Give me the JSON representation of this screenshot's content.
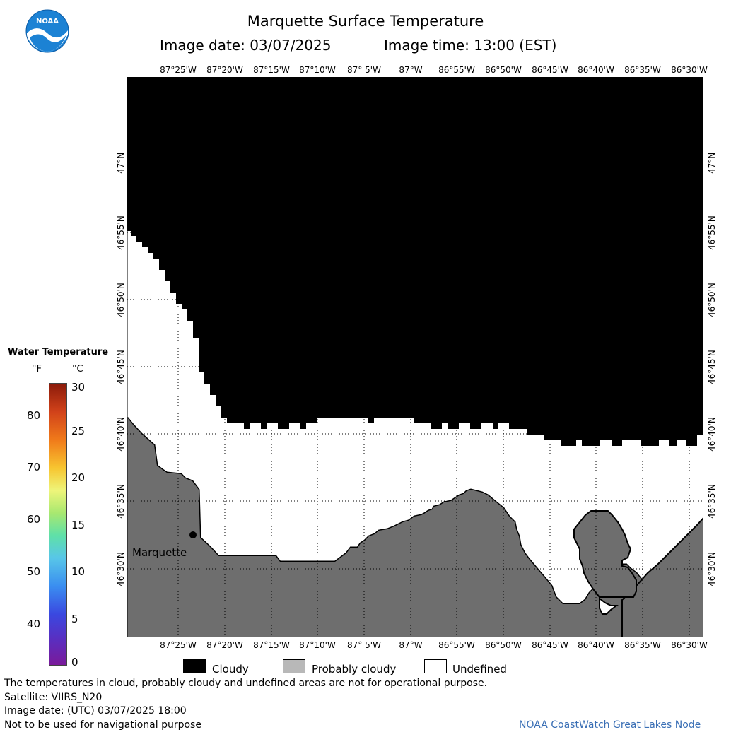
{
  "header": {
    "title": "Marquette Surface Temperature",
    "image_date": "Image date: 03/07/2025",
    "image_time": "Image time: 13:00 (EST)"
  },
  "logo": {
    "text": "NOAA"
  },
  "map": {
    "lon_labels": [
      "87°25'W",
      "87°20'W",
      "87°15'W",
      "87°10'W",
      "87° 5'W",
      "87°W",
      "86°55'W",
      "86°50'W",
      "86°45'W",
      "86°40'W",
      "86°35'W",
      "86°30'W"
    ],
    "lat_labels": [
      "47°N",
      "46°55'N",
      "46°50'N",
      "46°45'N",
      "46°40'N",
      "46°35'N",
      "46°30'N"
    ],
    "city_label": "Marquette",
    "colors": {
      "cloudy": "#000000",
      "probably_cloudy": "#6e6e6e",
      "undefined": "#ffffff"
    }
  },
  "colorbar": {
    "title": "Water Temperature",
    "unit_f": "°F",
    "unit_c": "°C",
    "f_ticks": [
      "80",
      "70",
      "60",
      "50",
      "40"
    ],
    "c_ticks": [
      "30",
      "25",
      "20",
      "15",
      "10",
      "5",
      "0"
    ]
  },
  "legend": {
    "cloudy": "Cloudy",
    "probably_cloudy": "Probably cloudy",
    "undefined": "Undefined"
  },
  "footer": {
    "line1": "The temperatures in cloud, probably cloudy and undefined areas are not for operational purpose.",
    "line2": "Satellite: VIIRS_N20",
    "line3": "Image date: (UTC) 03/07/2025  18:00",
    "line4": "Not to be used for navigational purpose",
    "credit": "NOAA CoastWatch Great Lakes Node"
  }
}
